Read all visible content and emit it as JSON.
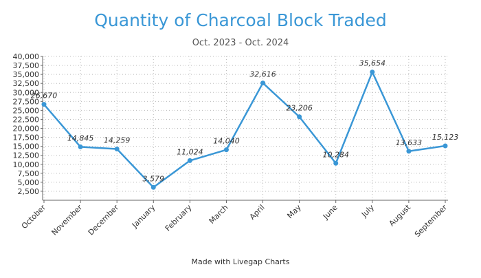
{
  "chart_data": {
    "type": "line",
    "title": "Quantity of Charcoal Block Traded",
    "subtitle": "Oct. 2023 - Oct. 2024",
    "xlabel": "",
    "ylabel": "",
    "categories": [
      "October",
      "November",
      "December",
      "January",
      "February",
      "March",
      "April",
      "May",
      "June",
      "July",
      "August",
      "September"
    ],
    "series": [
      {
        "values": [
          26670,
          14845,
          14259,
          3579,
          11024,
          14040,
          32616,
          23206,
          10284,
          35654,
          13633,
          15123
        ],
        "labels": [
          "26,670",
          "14,845",
          "14,259",
          "3,579",
          "11,024",
          "14,040",
          "32,616",
          "23,206",
          "10,284",
          "35,654",
          "13,633",
          "15,123"
        ]
      }
    ],
    "ylim": [
      0,
      40000
    ],
    "yticks": [
      2500,
      5000,
      7500,
      10000,
      12500,
      15000,
      17500,
      20000,
      22500,
      25000,
      27500,
      30000,
      32500,
      35000,
      37500,
      40000
    ],
    "ytick_labels": [
      "2,500",
      "5,000",
      "7,500",
      "10,000",
      "12,500",
      "15,000",
      "17,500",
      "20,000",
      "22,500",
      "25,000",
      "27,500",
      "30,000",
      "32,500",
      "35,000",
      "37,500",
      "40,000"
    ],
    "grid": true,
    "legend": "none",
    "colors": {
      "line": "#3a97d6",
      "title": "#3a97d6"
    }
  },
  "footer": "Made with Livegap Charts"
}
